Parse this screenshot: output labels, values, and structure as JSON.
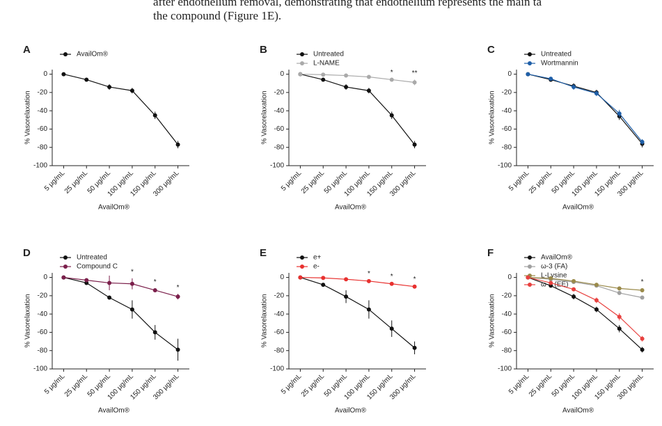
{
  "text_lines": [
    "after endothelium removal, demonstrating that endothelium represents the main ta",
    "the compound (Figure 1E)."
  ],
  "chart_data": [
    {
      "type": "line",
      "label": "A",
      "xlabel": "AvailOm®",
      "ylabel": "% Vasorelaxation",
      "categories": [
        "5 μg/mL",
        "25 μg/mL",
        "50 μg/mL",
        "100 μg/mL",
        "150 μg/mL",
        "300 μg/mL"
      ],
      "ylim": [
        -100,
        5
      ],
      "yticks": [
        0,
        -20,
        -40,
        -60,
        -80,
        -100
      ],
      "series": [
        {
          "name": "AvailOm®",
          "color": "#111111",
          "values": [
            0,
            -6,
            -14,
            -18,
            -45,
            -77
          ],
          "errors": [
            1,
            2,
            3,
            3,
            4,
            4
          ]
        }
      ],
      "annotations": []
    },
    {
      "type": "line",
      "label": "B",
      "xlabel": "AvailOm®",
      "ylabel": "% Vasorelaxation",
      "categories": [
        "5 μg/mL",
        "25 μg/mL",
        "50 μg/mL",
        "100 μg/mL",
        "150 μg/mL",
        "300 μg/mL"
      ],
      "ylim": [
        -100,
        5
      ],
      "yticks": [
        0,
        -20,
        -40,
        -60,
        -80,
        -100
      ],
      "series": [
        {
          "name": "Untreated",
          "color": "#111111",
          "values": [
            0,
            -6,
            -14,
            -18,
            -45,
            -77
          ],
          "errors": [
            1,
            2,
            3,
            3,
            4,
            4
          ]
        },
        {
          "name": "L-NAME",
          "color": "#aaaaaa",
          "values": [
            0,
            -0.5,
            -1.5,
            -3,
            -6,
            -9
          ],
          "errors": [
            0.5,
            0.5,
            1,
            1,
            1,
            3
          ]
        }
      ],
      "annotations": [
        {
          "label": "*",
          "category": 4
        },
        {
          "label": "**",
          "category": 5
        }
      ]
    },
    {
      "type": "line",
      "label": "C",
      "xlabel": "AvailOm®",
      "ylabel": "% Vasorelaxation",
      "categories": [
        "5 μg/mL",
        "25 μg/mL",
        "50 μg/mL",
        "100 μg/mL",
        "150 μg/mL",
        "300 μg/mL"
      ],
      "ylim": [
        -100,
        5
      ],
      "yticks": [
        0,
        -20,
        -40,
        -60,
        -80,
        -100
      ],
      "series": [
        {
          "name": "Untreated",
          "color": "#111111",
          "values": [
            0,
            -6,
            -13,
            -20,
            -46,
            -76
          ],
          "errors": [
            1,
            1,
            3,
            3,
            4,
            4
          ]
        },
        {
          "name": "Wortmannin",
          "color": "#1f5fa8",
          "values": [
            0,
            -5,
            -14,
            -21,
            -43,
            -74
          ],
          "errors": [
            1,
            1,
            3,
            3,
            4,
            3
          ]
        }
      ],
      "annotations": []
    },
    {
      "type": "line",
      "label": "D",
      "xlabel": "AvailOm®",
      "ylabel": "% Vasorelaxation",
      "categories": [
        "5 μg/mL",
        "25 μg/mL",
        "50 μg/mL",
        "100 μg/mL",
        "150 μg/mL",
        "300 μg/mL"
      ],
      "ylim": [
        -100,
        5
      ],
      "yticks": [
        0,
        -20,
        -40,
        -60,
        -80,
        -100
      ],
      "series": [
        {
          "name": "Untreated",
          "color": "#111111",
          "values": [
            0,
            -6,
            -22,
            -35,
            -60,
            -79
          ],
          "errors": [
            1,
            1,
            2,
            10,
            8,
            12
          ]
        },
        {
          "name": "Compound C",
          "color": "#7b1f4b",
          "values": [
            0,
            -3,
            -6,
            -7,
            -14,
            -21
          ],
          "errors": [
            1,
            1,
            8,
            6,
            2,
            3
          ]
        }
      ],
      "annotations": [
        {
          "label": "*",
          "category": 3
        },
        {
          "label": "*",
          "category": 4
        },
        {
          "label": "*",
          "category": 5
        }
      ]
    },
    {
      "type": "line",
      "label": "E",
      "xlabel": "AvailOm®",
      "ylabel": "% Vasorelaxation",
      "categories": [
        "5 μg/mL",
        "25 μg/mL",
        "50 μg/mL",
        "100 μg/mL",
        "150 μg/mL",
        "300 μg/mL"
      ],
      "ylim": [
        -100,
        5
      ],
      "yticks": [
        0,
        -20,
        -40,
        -60,
        -80,
        -100
      ],
      "series": [
        {
          "name": "e+",
          "color": "#111111",
          "values": [
            0,
            -8,
            -21,
            -35,
            -56,
            -77
          ],
          "errors": [
            1,
            1,
            7,
            10,
            9,
            7
          ]
        },
        {
          "name": "e-",
          "color": "#e8312f",
          "values": [
            0,
            -0.5,
            -2,
            -4,
            -7,
            -10
          ],
          "errors": [
            0.5,
            0.5,
            0.5,
            1,
            1,
            1
          ]
        }
      ],
      "annotations": [
        {
          "label": "*",
          "category": 3
        },
        {
          "label": "*",
          "category": 4
        },
        {
          "label": "*",
          "category": 5
        }
      ]
    },
    {
      "type": "line",
      "label": "F",
      "xlabel": "AvailOm®",
      "ylabel": "% Vasorelaxation",
      "categories": [
        "5 μg/mL",
        "25 μg/mL",
        "50 μg/mL",
        "100 μg/mL",
        "150 μg/mL",
        "300 μg/mL"
      ],
      "ylim": [
        -100,
        5
      ],
      "yticks": [
        0,
        -20,
        -40,
        -60,
        -80,
        -100
      ],
      "series": [
        {
          "name": "AvailOm®",
          "color": "#111111",
          "values": [
            0,
            -9,
            -21,
            -35,
            -56,
            -79
          ],
          "errors": [
            1,
            1,
            3,
            3,
            4,
            3
          ]
        },
        {
          "name": "ω-3 (FA)",
          "color": "#a0a0a0",
          "values": [
            0,
            -2,
            -5,
            -9,
            -17,
            -22
          ],
          "errors": [
            1,
            1,
            1,
            1,
            2,
            2
          ]
        },
        {
          "name": "L-Lysine",
          "color": "#9a8a4a",
          "values": [
            0,
            -1,
            -4,
            -8,
            -12,
            -14
          ],
          "errors": [
            1,
            1,
            1,
            1,
            2,
            2
          ]
        },
        {
          "name": "ω-3 (EE)",
          "color": "#e8413f",
          "values": [
            0,
            -6,
            -13,
            -25,
            -43,
            -67
          ],
          "errors": [
            1,
            1,
            2,
            3,
            4,
            3
          ]
        }
      ],
      "annotations": [
        {
          "label": "*",
          "category": 5
        }
      ]
    }
  ]
}
